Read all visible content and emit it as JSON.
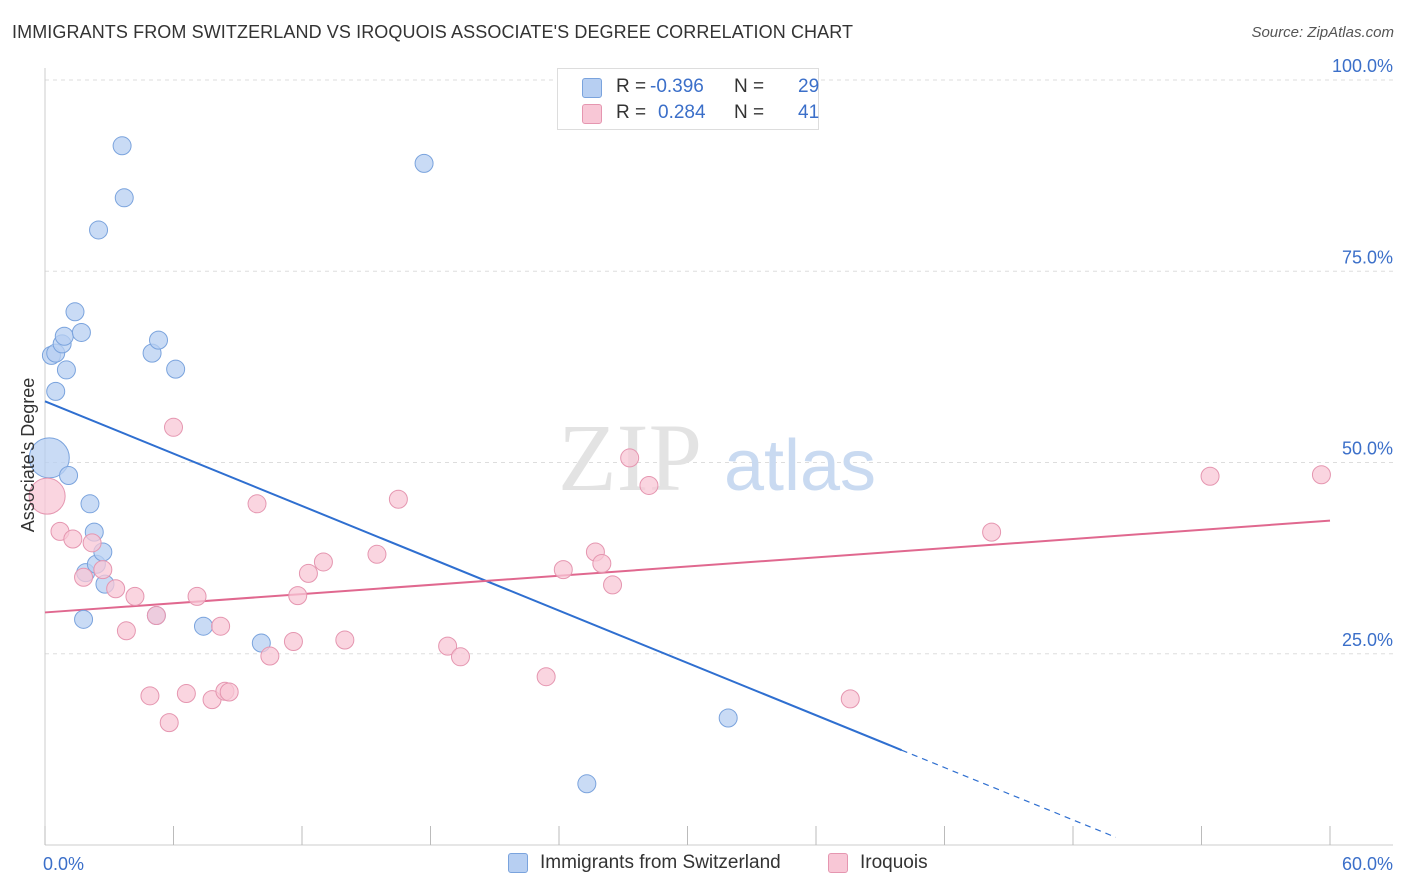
{
  "header": {
    "title": "IMMIGRANTS FROM SWITZERLAND VS IROQUOIS ASSOCIATE'S DEGREE CORRELATION CHART",
    "source": "Source: ZipAtlas.com"
  },
  "legend_top": {
    "rows": [
      {
        "r_label": "R =",
        "r_value": "-0.396",
        "n_label": "N =",
        "n_value": "29"
      },
      {
        "r_label": "R =",
        "r_value": "0.284",
        "n_label": "N =",
        "n_value": "41"
      }
    ]
  },
  "colors": {
    "blue_fill": "#b7cff2",
    "blue_stroke": "#7aa3dd",
    "blue_line": "#2f6fd0",
    "pink_fill": "#f8c7d6",
    "pink_stroke": "#e596b0",
    "pink_line": "#e0688f",
    "axis_label": "#3b6fc9",
    "grid": "#dddddd"
  },
  "watermark": {
    "zip": "ZIP",
    "atlas": "atlas"
  },
  "chart_data": {
    "type": "scatter",
    "title": "IMMIGRANTS FROM SWITZERLAND VS IROQUOIS ASSOCIATE'S DEGREE CORRELATION CHART",
    "xlabel": "",
    "ylabel": "Associate's Degree",
    "xlim": [
      0,
      60
    ],
    "ylim": [
      0,
      100
    ],
    "x_tick_labels": [
      "0.0%",
      "60.0%"
    ],
    "y_ticks": [
      25,
      50,
      75,
      100
    ],
    "y_tick_labels": [
      "25.0%",
      "50.0%",
      "75.0%",
      "100.0%"
    ],
    "grid": true,
    "series": [
      {
        "name": "Immigrants from Switzerland",
        "color": "blue",
        "R": -0.396,
        "N": 29,
        "points": [
          [
            0.2,
            50.6,
            20
          ],
          [
            0.3,
            64.0,
            9
          ],
          [
            0.5,
            59.3,
            9
          ],
          [
            0.5,
            64.3,
            9
          ],
          [
            0.8,
            65.5,
            9
          ],
          [
            0.9,
            66.5,
            9
          ],
          [
            1.0,
            62.1,
            9
          ],
          [
            1.1,
            48.3,
            9
          ],
          [
            1.4,
            69.7,
            9
          ],
          [
            1.7,
            67.0,
            9
          ],
          [
            1.8,
            29.5,
            9
          ],
          [
            1.9,
            35.6,
            9
          ],
          [
            2.1,
            44.6,
            9
          ],
          [
            2.3,
            40.9,
            9
          ],
          [
            2.4,
            36.7,
            9
          ],
          [
            2.5,
            80.4,
            9
          ],
          [
            2.7,
            38.3,
            9
          ],
          [
            2.8,
            34.1,
            9
          ],
          [
            3.6,
            91.4,
            9
          ],
          [
            3.7,
            84.6,
            9
          ],
          [
            5.0,
            64.3,
            9
          ],
          [
            5.2,
            30.0,
            9
          ],
          [
            5.3,
            66.0,
            9
          ],
          [
            6.1,
            62.2,
            9
          ],
          [
            7.4,
            28.6,
            9
          ],
          [
            10.1,
            26.4,
            9
          ],
          [
            17.7,
            89.1,
            9
          ],
          [
            25.3,
            8.0,
            9
          ],
          [
            31.9,
            16.6,
            9
          ]
        ]
      },
      {
        "name": "Iroquois",
        "color": "pink",
        "R": 0.284,
        "N": 41,
        "points": [
          [
            0.1,
            45.6,
            18
          ],
          [
            0.7,
            41.0,
            9
          ],
          [
            1.3,
            40.0,
            9
          ],
          [
            1.8,
            35.0,
            9
          ],
          [
            2.2,
            39.5,
            9
          ],
          [
            2.7,
            36.0,
            9
          ],
          [
            3.3,
            33.5,
            9
          ],
          [
            3.8,
            28.0,
            9
          ],
          [
            4.2,
            32.5,
            9
          ],
          [
            4.9,
            19.5,
            9
          ],
          [
            5.2,
            30.0,
            9
          ],
          [
            5.8,
            16.0,
            9
          ],
          [
            6.0,
            54.6,
            9
          ],
          [
            6.6,
            19.8,
            9
          ],
          [
            7.1,
            32.5,
            9
          ],
          [
            7.8,
            19.0,
            9
          ],
          [
            8.2,
            28.6,
            9
          ],
          [
            8.4,
            20.1,
            9
          ],
          [
            8.6,
            20.0,
            9
          ],
          [
            9.9,
            44.6,
            9
          ],
          [
            10.5,
            24.7,
            9
          ],
          [
            11.6,
            26.6,
            9
          ],
          [
            11.8,
            32.6,
            9
          ],
          [
            12.3,
            35.5,
            9
          ],
          [
            13.0,
            37.0,
            9
          ],
          [
            14.0,
            26.8,
            9
          ],
          [
            15.5,
            38.0,
            9
          ],
          [
            16.5,
            45.2,
            9
          ],
          [
            18.8,
            26.0,
            9
          ],
          [
            19.4,
            24.6,
            9
          ],
          [
            23.4,
            22.0,
            9
          ],
          [
            24.2,
            36.0,
            9
          ],
          [
            25.7,
            38.3,
            9
          ],
          [
            26.0,
            36.8,
            9
          ],
          [
            26.5,
            34.0,
            9
          ],
          [
            27.3,
            50.6,
            9
          ],
          [
            28.2,
            47.0,
            9
          ],
          [
            37.6,
            19.1,
            9
          ],
          [
            44.2,
            40.9,
            9
          ],
          [
            54.4,
            48.2,
            9
          ],
          [
            59.6,
            48.4,
            9
          ]
        ]
      }
    ],
    "trend_lines": [
      {
        "series": "Immigrants from Switzerland",
        "x0": 0,
        "y0": 58.0,
        "x1": 40.0,
        "y1": 12.4,
        "dashed_to_x": 50.0,
        "dashed_to_y": 1.0
      },
      {
        "series": "Iroquois",
        "x0": 0,
        "y0": 30.4,
        "x1": 60.0,
        "y1": 42.4
      }
    ]
  },
  "legend_bottom": {
    "items": [
      {
        "label": "Immigrants from Switzerland"
      },
      {
        "label": "Iroquois"
      }
    ]
  }
}
